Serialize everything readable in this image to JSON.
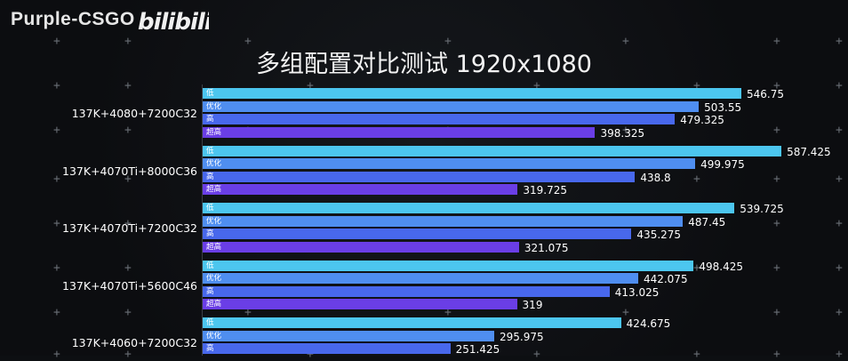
{
  "watermark": "Purple-CSGO",
  "logo_text": "bilibili",
  "colors": {
    "background": "#0d0f12",
    "low": "#4cc6ef",
    "optimized": "#4f8ef0",
    "high": "#4868ec",
    "ultra": "#6a3ee6"
  },
  "chart_data": {
    "type": "bar",
    "orientation": "horizontal",
    "title": "多组配置对比测试 1920x1080",
    "xlim": [
      0,
      600
    ],
    "grid": false,
    "legend": "none",
    "series_names": [
      "低",
      "优化",
      "高",
      "超高"
    ],
    "groups": [
      {
        "category": "137K+4080+7200C32",
        "values": [
          546.75,
          503.55,
          479.325,
          398.325
        ],
        "labels": [
          "546.75",
          "503.55",
          "479.325",
          "398.325"
        ]
      },
      {
        "category": "137K+4070Ti+8000C36",
        "values": [
          587.425,
          499.975,
          438.8,
          319.725
        ],
        "labels": [
          "587.425",
          "499.975",
          "438.8",
          "319.725"
        ]
      },
      {
        "category": "137K+4070Ti+7200C32",
        "values": [
          539.725,
          487.45,
          435.275,
          321.075
        ],
        "labels": [
          "539.725",
          "487.45",
          "435.275",
          "321.075"
        ]
      },
      {
        "category": "137K+4070Ti+5600C46",
        "values": [
          498.425,
          442.075,
          413.025,
          319
        ],
        "labels": [
          "498.425",
          "442.075",
          "413.025",
          "319"
        ]
      },
      {
        "category": "137K+4060+7200C32",
        "values": [
          424.675,
          295.975,
          251.425
        ],
        "labels": [
          "424.675",
          "295.975",
          "251.425"
        ]
      }
    ]
  }
}
